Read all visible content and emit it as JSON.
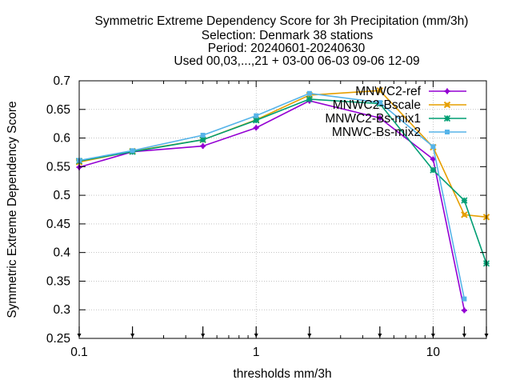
{
  "title_lines": [
    "Symmetric Extreme Dependency Score  for 3h Precipitation (mm/3h)",
    "Selection: Denmark     38 stations",
    "Period: 20240601-20240630",
    "Used 00,03,...,21 + 03-00 06-03 09-06 12-09"
  ],
  "chart_data": {
    "type": "line",
    "xlabel": "thresholds mm/3h",
    "ylabel": "Symmetric Extreme Dependency Score",
    "x_scale": "log",
    "xlim": [
      0.1,
      20
    ],
    "ylim": [
      0.25,
      0.7
    ],
    "x_ticks": [
      {
        "value": 0.1,
        "label": "0.1"
      },
      {
        "value": 1,
        "label": "1"
      },
      {
        "value": 10,
        "label": "10"
      }
    ],
    "y_ticks": [
      {
        "value": 0.25,
        "label": "0.25"
      },
      {
        "value": 0.3,
        "label": "0.3"
      },
      {
        "value": 0.35,
        "label": "0.35"
      },
      {
        "value": 0.4,
        "label": "0.4"
      },
      {
        "value": 0.45,
        "label": "0.45"
      },
      {
        "value": 0.5,
        "label": "0.5"
      },
      {
        "value": 0.55,
        "label": "0.55"
      },
      {
        "value": 0.6,
        "label": "0.6"
      },
      {
        "value": 0.65,
        "label": "0.65"
      },
      {
        "value": 0.7,
        "label": "0.7"
      }
    ],
    "grid": true,
    "legend_position": "top-right",
    "threshold_markers": [
      0.1,
      0.2,
      0.5,
      1,
      2,
      5,
      10,
      15,
      20
    ],
    "x": [
      0.1,
      0.2,
      0.5,
      1,
      2,
      5,
      10,
      15,
      20
    ],
    "series": [
      {
        "name": "MNWC2-ref",
        "color": "#9400d3",
        "marker": "plus",
        "x": [
          0.1,
          0.2,
          0.5,
          1,
          2,
          5,
          10,
          15
        ],
        "values": [
          0.549,
          0.576,
          0.586,
          0.618,
          0.665,
          0.635,
          0.563,
          0.299
        ]
      },
      {
        "name": "MNWC2-Bscale",
        "color": "#e69f00",
        "marker": "x",
        "x": [
          0.1,
          0.2,
          0.5,
          1,
          2,
          5,
          10,
          15,
          20
        ],
        "values": [
          0.558,
          0.577,
          0.597,
          0.632,
          0.675,
          0.683,
          0.584,
          0.466,
          0.462
        ]
      },
      {
        "name": "MNWC2-Bs-mix1",
        "color": "#009e73",
        "marker": "star",
        "x": [
          0.1,
          0.2,
          0.5,
          1,
          2,
          5,
          10,
          15,
          20
        ],
        "values": [
          0.56,
          0.576,
          0.597,
          0.631,
          0.668,
          0.66,
          0.544,
          0.491,
          0.381
        ]
      },
      {
        "name": "MNWC-Bs-mix2",
        "color": "#56b4e9",
        "marker": "box",
        "x": [
          0.1,
          0.2,
          0.5,
          1,
          2,
          5,
          10,
          15
        ],
        "values": [
          0.561,
          0.578,
          0.605,
          0.639,
          0.678,
          0.662,
          0.585,
          0.319
        ]
      }
    ]
  }
}
